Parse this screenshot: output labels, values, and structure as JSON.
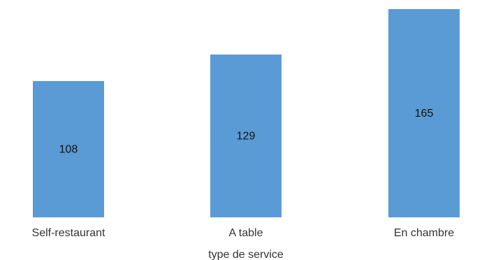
{
  "chart_data": {
    "type": "bar",
    "categories": [
      "Self-restaurant",
      "A table",
      "En chambre"
    ],
    "values": [
      108,
      129,
      165
    ],
    "xlabel": "type de service",
    "ylabel": "",
    "ylim": [
      0,
      165
    ],
    "grid": false,
    "legend": "none",
    "bar_color": "#5B9BD5",
    "data_labels": true
  }
}
